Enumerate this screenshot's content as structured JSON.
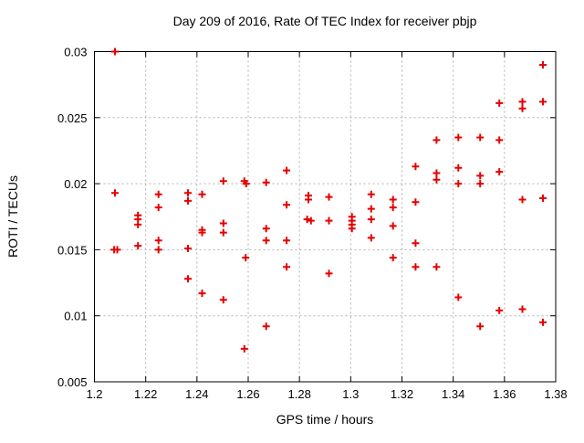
{
  "chart_data": {
    "type": "scatter",
    "title": "Day 209 of 2016, Rate Of TEC Index for receiver pbjp",
    "xlabel": "GPS time / hours",
    "ylabel": "ROTI / TECUs",
    "xlim": [
      1.2,
      1.38
    ],
    "ylim": [
      0.005,
      0.03
    ],
    "xticks": [
      1.2,
      1.22,
      1.24,
      1.26,
      1.28,
      1.3,
      1.32,
      1.34,
      1.36,
      1.38
    ],
    "xtick_labels": [
      "1.2",
      "1.22",
      "1.24",
      "1.26",
      "1.28",
      "1.3",
      "1.32",
      "1.34",
      "1.36",
      "1.38"
    ],
    "yticks": [
      0.005,
      0.01,
      0.015,
      0.02,
      0.025,
      0.03
    ],
    "ytick_labels": [
      "0.005",
      "0.01",
      "0.015",
      "0.02",
      "0.025",
      "0.03"
    ],
    "grid": true,
    "legend": "none",
    "marker": "plus",
    "marker_color": "#e60000",
    "grid_color": "#b0b0b0",
    "border_color": "#000000",
    "points": [
      [
        1.208,
        0.03
      ],
      [
        1.208,
        0.0193
      ],
      [
        1.2077,
        0.015
      ],
      [
        1.2089,
        0.015
      ],
      [
        1.217,
        0.0176
      ],
      [
        1.217,
        0.0173
      ],
      [
        1.217,
        0.0169
      ],
      [
        1.217,
        0.0153
      ],
      [
        1.225,
        0.0192
      ],
      [
        1.225,
        0.0182
      ],
      [
        1.225,
        0.0157
      ],
      [
        1.225,
        0.015
      ],
      [
        1.2365,
        0.0193
      ],
      [
        1.2365,
        0.0187
      ],
      [
        1.2365,
        0.0151
      ],
      [
        1.2365,
        0.0128
      ],
      [
        1.242,
        0.0192
      ],
      [
        1.242,
        0.0165
      ],
      [
        1.242,
        0.0163
      ],
      [
        1.242,
        0.0117
      ],
      [
        1.2503,
        0.0202
      ],
      [
        1.2503,
        0.017
      ],
      [
        1.2503,
        0.0163
      ],
      [
        1.2503,
        0.0112
      ],
      [
        1.2585,
        0.0202
      ],
      [
        1.2592,
        0.02
      ],
      [
        1.259,
        0.0144
      ],
      [
        1.2585,
        0.0075
      ],
      [
        1.267,
        0.0201
      ],
      [
        1.267,
        0.0166
      ],
      [
        1.267,
        0.0157
      ],
      [
        1.267,
        0.0092
      ],
      [
        1.275,
        0.021
      ],
      [
        1.275,
        0.0184
      ],
      [
        1.275,
        0.0157
      ],
      [
        1.275,
        0.0137
      ],
      [
        1.2835,
        0.0191
      ],
      [
        1.2835,
        0.0188
      ],
      [
        1.283,
        0.0173
      ],
      [
        1.2845,
        0.0172
      ],
      [
        1.2915,
        0.019
      ],
      [
        1.2915,
        0.0172
      ],
      [
        1.2915,
        0.0132
      ],
      [
        1.3005,
        0.0175
      ],
      [
        1.3005,
        0.0172
      ],
      [
        1.3005,
        0.0169
      ],
      [
        1.3005,
        0.0166
      ],
      [
        1.308,
        0.0192
      ],
      [
        1.308,
        0.0181
      ],
      [
        1.308,
        0.0173
      ],
      [
        1.308,
        0.0159
      ],
      [
        1.3165,
        0.0188
      ],
      [
        1.3165,
        0.0182
      ],
      [
        1.3165,
        0.0168
      ],
      [
        1.3165,
        0.0144
      ],
      [
        1.3253,
        0.0213
      ],
      [
        1.3253,
        0.0186
      ],
      [
        1.3253,
        0.0155
      ],
      [
        1.3253,
        0.0137
      ],
      [
        1.3335,
        0.0233
      ],
      [
        1.3335,
        0.0208
      ],
      [
        1.3335,
        0.0203
      ],
      [
        1.3335,
        0.0137
      ],
      [
        1.342,
        0.0235
      ],
      [
        1.342,
        0.0212
      ],
      [
        1.342,
        0.02
      ],
      [
        1.342,
        0.0114
      ],
      [
        1.3505,
        0.0235
      ],
      [
        1.3505,
        0.0206
      ],
      [
        1.3505,
        0.02
      ],
      [
        1.3505,
        0.0092
      ],
      [
        1.358,
        0.0261
      ],
      [
        1.358,
        0.0233
      ],
      [
        1.358,
        0.0209
      ],
      [
        1.358,
        0.0104
      ],
      [
        1.367,
        0.0262
      ],
      [
        1.367,
        0.0257
      ],
      [
        1.367,
        0.0188
      ],
      [
        1.367,
        0.0105
      ],
      [
        1.375,
        0.029
      ],
      [
        1.375,
        0.0262
      ],
      [
        1.375,
        0.0189
      ],
      [
        1.375,
        0.0095
      ]
    ]
  }
}
